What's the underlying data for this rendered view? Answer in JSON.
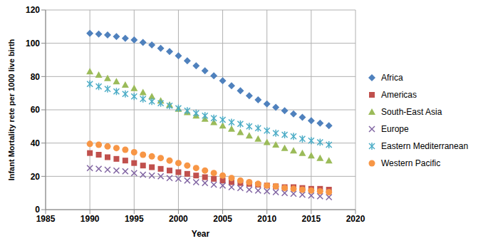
{
  "chart_data": {
    "type": "scatter",
    "x_label": "Year",
    "y_label": "Infant Mortality rete per 1000 live birth",
    "xlim": [
      1985,
      2020
    ],
    "xticks": [
      1985,
      1990,
      1995,
      2000,
      2005,
      2010,
      2015,
      2020
    ],
    "ylim": [
      0,
      120
    ],
    "yticks": [
      0,
      20,
      40,
      60,
      80,
      100,
      120
    ],
    "grid": true,
    "legend": "right",
    "x": [
      1990,
      1991,
      1992,
      1993,
      1994,
      1995,
      1996,
      1997,
      1998,
      1999,
      2000,
      2001,
      2002,
      2003,
      2004,
      2005,
      2006,
      2007,
      2008,
      2009,
      2010,
      2011,
      2012,
      2013,
      2014,
      2015,
      2016,
      2017
    ],
    "series": [
      {
        "name": "Africa",
        "color": "#4f81bd",
        "marker": "diamond",
        "values": [
          106,
          105.5,
          105,
          104,
          103,
          102,
          100.5,
          99,
          97,
          95,
          92.5,
          89.5,
          86.5,
          83.5,
          80.5,
          77.5,
          74.5,
          71.5,
          68.5,
          66,
          63.5,
          61.5,
          59.5,
          57.5,
          55.5,
          53.5,
          52,
          50.5
        ]
      },
      {
        "name": "Americas",
        "color": "#c0504d",
        "marker": "square",
        "values": [
          34,
          33,
          31.5,
          30.5,
          29.5,
          28,
          26.5,
          25.5,
          24.5,
          23.5,
          22.5,
          21.5,
          20.5,
          19.5,
          18.5,
          17.5,
          16.5,
          16,
          15.5,
          15,
          14.5,
          14,
          13.5,
          13.5,
          13,
          12.5,
          12.5,
          12
        ]
      },
      {
        "name": "South-East Asia",
        "color": "#9bbb59",
        "marker": "triangle",
        "values": [
          83,
          81,
          79,
          77,
          75,
          73,
          70.5,
          68,
          65.5,
          63,
          60.5,
          58.5,
          56.5,
          54.5,
          52.5,
          50.5,
          48.5,
          46.5,
          44.5,
          42.5,
          40.5,
          39,
          37,
          35.5,
          34,
          32.5,
          31,
          29.5
        ]
      },
      {
        "name": "Europe",
        "color": "#8064a2",
        "marker": "x",
        "values": [
          25,
          24.5,
          24,
          23.5,
          23,
          22,
          21,
          20.5,
          20,
          19,
          18.5,
          17.5,
          16.5,
          16,
          15,
          14.5,
          13.5,
          13,
          12,
          11.5,
          11,
          10.5,
          10,
          9.5,
          9,
          8.5,
          8,
          7.5
        ]
      },
      {
        "name": "Eastern Mediterranean",
        "color": "#4bacc6",
        "marker": "star",
        "values": [
          75.5,
          74,
          72.5,
          71,
          69.5,
          68,
          66.5,
          65,
          64,
          62.5,
          61,
          59.5,
          58,
          56.5,
          55,
          54,
          52.5,
          51.5,
          50,
          49,
          47.5,
          46,
          45,
          44,
          42.5,
          41.5,
          40.5,
          39
        ]
      },
      {
        "name": "Western Pacific",
        "color": "#f79646",
        "marker": "circle",
        "values": [
          39.5,
          39,
          38,
          37,
          36,
          34.5,
          33,
          32,
          31,
          29.5,
          28,
          26.5,
          25,
          23.5,
          22,
          20.5,
          19,
          17.5,
          16.5,
          15.5,
          14.5,
          14,
          13,
          12.5,
          12,
          11.5,
          11,
          10.5
        ]
      }
    ]
  }
}
